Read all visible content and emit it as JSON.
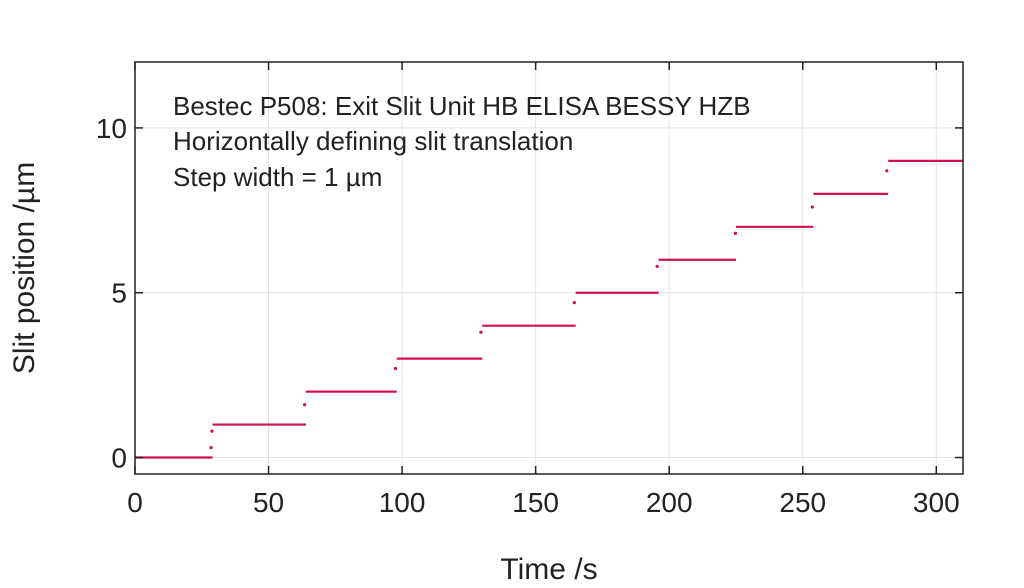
{
  "chart_data": {
    "type": "scatter",
    "title": "",
    "xlabel": "Time /s",
    "ylabel": "Slit position /µm",
    "xlim": [
      0,
      310
    ],
    "ylim": [
      -0.5,
      12
    ],
    "xticks": [
      0,
      50,
      100,
      150,
      200,
      250,
      300
    ],
    "yticks": [
      0,
      5,
      10
    ],
    "grid": true,
    "colors": {
      "series": "#d0104a",
      "axis": "#222222",
      "grid": "#e3e3e3"
    },
    "annotations": [
      "Bestec P508: Exit Slit Unit HB ELISA BESSY HZB",
      "Horizontally defining slit translation",
      "Step width = 1 µm"
    ],
    "series": [
      {
        "steps": [
          {
            "x_start": 0,
            "x_end": 29,
            "y": 0
          },
          {
            "x_start": 29,
            "x_end": 64,
            "y": 1
          },
          {
            "x_start": 64,
            "x_end": 98,
            "y": 2
          },
          {
            "x_start": 98,
            "x_end": 130,
            "y": 3
          },
          {
            "x_start": 130,
            "x_end": 165,
            "y": 4
          },
          {
            "x_start": 165,
            "x_end": 196,
            "y": 5
          },
          {
            "x_start": 196,
            "x_end": 225,
            "y": 6
          },
          {
            "x_start": 225,
            "x_end": 254,
            "y": 7
          },
          {
            "x_start": 254,
            "x_end": 282,
            "y": 8
          },
          {
            "x_start": 282,
            "x_end": 310,
            "y": 9
          }
        ],
        "transition_points": [
          {
            "x": 28.5,
            "y": 0.3
          },
          {
            "x": 28.8,
            "y": 0.8
          },
          {
            "x": 63.5,
            "y": 1.6
          },
          {
            "x": 97.5,
            "y": 2.7
          },
          {
            "x": 129.5,
            "y": 3.8
          },
          {
            "x": 164.5,
            "y": 4.7
          },
          {
            "x": 195.5,
            "y": 5.8
          },
          {
            "x": 224.8,
            "y": 6.8
          },
          {
            "x": 253.6,
            "y": 7.6
          },
          {
            "x": 281.5,
            "y": 8.7
          }
        ]
      }
    ]
  }
}
